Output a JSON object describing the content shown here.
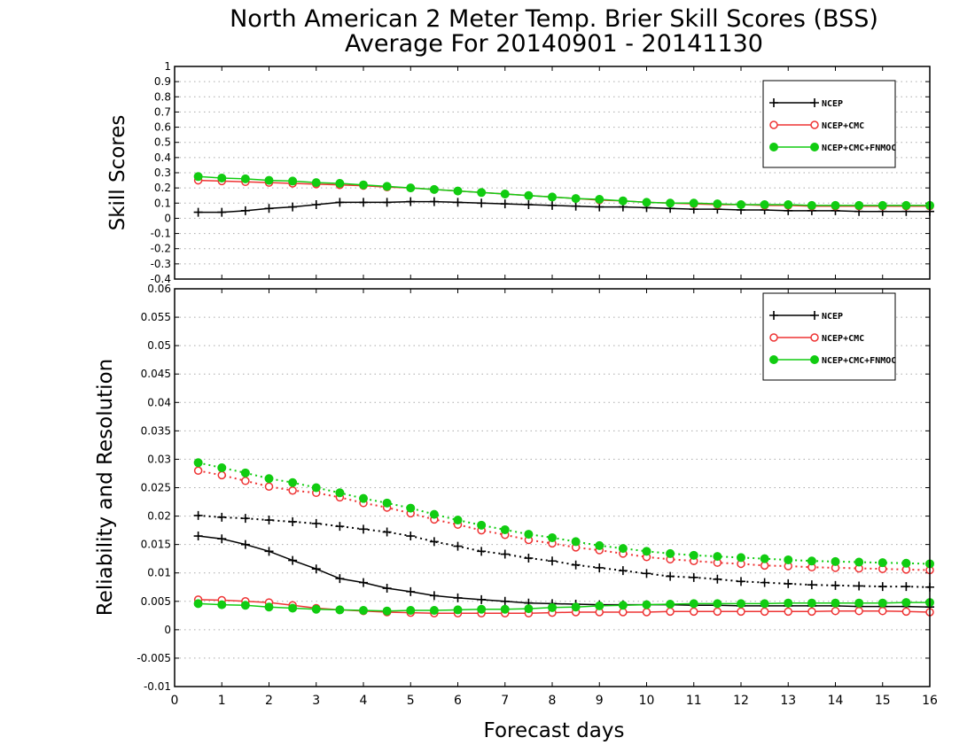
{
  "title_line1": "North American 2 Meter Temp. Brier Skill Scores (BSS)",
  "title_line2": "Average For 20140901 - 20141130",
  "colors": {
    "NCEP": "#000000",
    "NCEP+CMC": "#ee3333",
    "NCEP+CMC+FNMOC": "#11cc11"
  },
  "chart_data": [
    {
      "type": "line",
      "panel": "top",
      "ylabel": "Skill Scores",
      "xlabel": "",
      "xlim": [
        0,
        16
      ],
      "ylim": [
        -0.4,
        1
      ],
      "y_ticks": [
        "-0.4",
        "-0.3",
        "-0.2",
        "-0.1",
        "0",
        "0.1",
        "0.2",
        "0.3",
        "0.4",
        "0.5",
        "0.6",
        "0.7",
        "0.8",
        "0.9",
        "1"
      ],
      "grid": "horizontal dotted",
      "legend_position": "top-right",
      "x": [
        0.5,
        1,
        1.5,
        2,
        2.5,
        3,
        3.5,
        4,
        4.5,
        5,
        5.5,
        6,
        6.5,
        7,
        7.5,
        8,
        8.5,
        9,
        9.5,
        10,
        10.5,
        11,
        11.5,
        12,
        12.5,
        13,
        13.5,
        14,
        14.5,
        15,
        15.5,
        16
      ],
      "series": [
        {
          "name": "NCEP",
          "color": "#000000",
          "marker": "plus",
          "style": "solid",
          "values": [
            0.04,
            0.04,
            0.05,
            0.065,
            0.075,
            0.09,
            0.105,
            0.105,
            0.105,
            0.11,
            0.11,
            0.105,
            0.1,
            0.095,
            0.09,
            0.085,
            0.08,
            0.075,
            0.075,
            0.07,
            0.065,
            0.06,
            0.06,
            0.055,
            0.055,
            0.05,
            0.05,
            0.05,
            0.045,
            0.045,
            0.045,
            0.045
          ]
        },
        {
          "name": "NCEP+CMC",
          "color": "#ee3333",
          "marker": "open-circle",
          "style": "solid",
          "values": [
            0.25,
            0.245,
            0.24,
            0.235,
            0.23,
            0.225,
            0.22,
            0.215,
            0.205,
            0.2,
            0.19,
            0.18,
            0.17,
            0.16,
            0.15,
            0.14,
            0.13,
            0.12,
            0.115,
            0.105,
            0.1,
            0.095,
            0.09,
            0.09,
            0.085,
            0.085,
            0.08,
            0.08,
            0.08,
            0.08,
            0.08,
            0.08
          ]
        },
        {
          "name": "NCEP+CMC+FNMOC",
          "color": "#11cc11",
          "marker": "filled-circle",
          "style": "solid",
          "values": [
            0.275,
            0.265,
            0.26,
            0.25,
            0.245,
            0.235,
            0.23,
            0.22,
            0.21,
            0.2,
            0.19,
            0.18,
            0.17,
            0.16,
            0.15,
            0.14,
            0.13,
            0.125,
            0.115,
            0.105,
            0.1,
            0.1,
            0.095,
            0.09,
            0.09,
            0.09,
            0.085,
            0.085,
            0.085,
            0.085,
            0.085,
            0.085
          ]
        }
      ]
    },
    {
      "type": "line",
      "panel": "bottom",
      "ylabel": "Reliability and Resolution",
      "xlabel": "Forecast days",
      "xlim": [
        0,
        16
      ],
      "x_ticks": [
        "0",
        "1",
        "2",
        "3",
        "4",
        "5",
        "6",
        "7",
        "8",
        "9",
        "10",
        "11",
        "12",
        "13",
        "14",
        "15",
        "16"
      ],
      "ylim": [
        -0.01,
        0.06
      ],
      "y_ticks": [
        "-0.01",
        "-0.005",
        "0",
        "0.005",
        "0.01",
        "0.015",
        "0.02",
        "0.025",
        "0.03",
        "0.035",
        "0.04",
        "0.045",
        "0.05",
        "0.055",
        "0.06"
      ],
      "grid": "horizontal dotted",
      "legend_position": "top-right",
      "x": [
        0.5,
        1,
        1.5,
        2,
        2.5,
        3,
        3.5,
        4,
        4.5,
        5,
        5.5,
        6,
        6.5,
        7,
        7.5,
        8,
        8.5,
        9,
        9.5,
        10,
        10.5,
        11,
        11.5,
        12,
        12.5,
        13,
        13.5,
        14,
        14.5,
        15,
        15.5,
        16
      ],
      "series": [
        {
          "name": "NCEP",
          "metric": "reliability",
          "color": "#000000",
          "marker": "plus",
          "style": "solid",
          "values": [
            0.0165,
            0.016,
            0.015,
            0.0138,
            0.0122,
            0.0107,
            0.009,
            0.0083,
            0.0073,
            0.0067,
            0.006,
            0.0056,
            0.0053,
            0.005,
            0.0047,
            0.0046,
            0.0045,
            0.0044,
            0.0044,
            0.0044,
            0.0044,
            0.0043,
            0.0043,
            0.0042,
            0.0042,
            0.0042,
            0.0042,
            0.0042,
            0.0041,
            0.0041,
            0.0041,
            0.004
          ]
        },
        {
          "name": "NCEP",
          "metric": "resolution",
          "color": "#000000",
          "marker": "plus",
          "style": "dotted",
          "values": [
            0.0201,
            0.0198,
            0.0196,
            0.0193,
            0.019,
            0.0187,
            0.0182,
            0.0177,
            0.0172,
            0.0165,
            0.0155,
            0.0147,
            0.0138,
            0.0133,
            0.0126,
            0.0121,
            0.0114,
            0.0109,
            0.0104,
            0.0099,
            0.0094,
            0.0092,
            0.0089,
            0.0085,
            0.0083,
            0.0081,
            0.0079,
            0.0078,
            0.0077,
            0.0076,
            0.0076,
            0.0075
          ]
        },
        {
          "name": "NCEP+CMC",
          "metric": "reliability",
          "color": "#ee3333",
          "marker": "open-circle",
          "style": "solid",
          "values": [
            0.0053,
            0.0052,
            0.005,
            0.0048,
            0.0043,
            0.0038,
            0.0035,
            0.0033,
            0.0031,
            0.003,
            0.0029,
            0.0029,
            0.0029,
            0.0029,
            0.0029,
            0.003,
            0.0031,
            0.0031,
            0.0031,
            0.0031,
            0.0032,
            0.0032,
            0.0032,
            0.0032,
            0.0032,
            0.0032,
            0.0032,
            0.0033,
            0.0033,
            0.0033,
            0.0032,
            0.0031
          ]
        },
        {
          "name": "NCEP+CMC",
          "metric": "resolution",
          "color": "#ee3333",
          "marker": "open-circle",
          "style": "dotted",
          "values": [
            0.028,
            0.0272,
            0.0262,
            0.0252,
            0.0245,
            0.0241,
            0.0233,
            0.0223,
            0.0215,
            0.0205,
            0.0194,
            0.0185,
            0.0175,
            0.0167,
            0.0158,
            0.0152,
            0.0145,
            0.014,
            0.0134,
            0.0128,
            0.0124,
            0.0121,
            0.0118,
            0.0116,
            0.0113,
            0.0112,
            0.011,
            0.0109,
            0.0108,
            0.0107,
            0.0106,
            0.0105
          ]
        },
        {
          "name": "NCEP+CMC+FNMOC",
          "metric": "reliability",
          "color": "#11cc11",
          "marker": "filled-circle",
          "style": "solid",
          "values": [
            0.0046,
            0.0044,
            0.0043,
            0.004,
            0.0038,
            0.0036,
            0.0035,
            0.0034,
            0.0033,
            0.0034,
            0.0034,
            0.0035,
            0.0036,
            0.0036,
            0.0037,
            0.0039,
            0.004,
            0.0042,
            0.0043,
            0.0044,
            0.0045,
            0.0046,
            0.0046,
            0.0046,
            0.0046,
            0.0047,
            0.0047,
            0.0047,
            0.0047,
            0.0047,
            0.0048,
            0.0048
          ]
        },
        {
          "name": "NCEP+CMC+FNMOC",
          "metric": "resolution",
          "color": "#11cc11",
          "marker": "filled-circle",
          "style": "dotted",
          "values": [
            0.0294,
            0.0285,
            0.0276,
            0.0266,
            0.0259,
            0.025,
            0.0241,
            0.0231,
            0.0223,
            0.0214,
            0.0203,
            0.0193,
            0.0184,
            0.0176,
            0.0168,
            0.0162,
            0.0155,
            0.0148,
            0.0143,
            0.0138,
            0.0134,
            0.0131,
            0.0129,
            0.0127,
            0.0125,
            0.0123,
            0.0121,
            0.012,
            0.0119,
            0.0118,
            0.0117,
            0.0116
          ]
        }
      ]
    }
  ]
}
